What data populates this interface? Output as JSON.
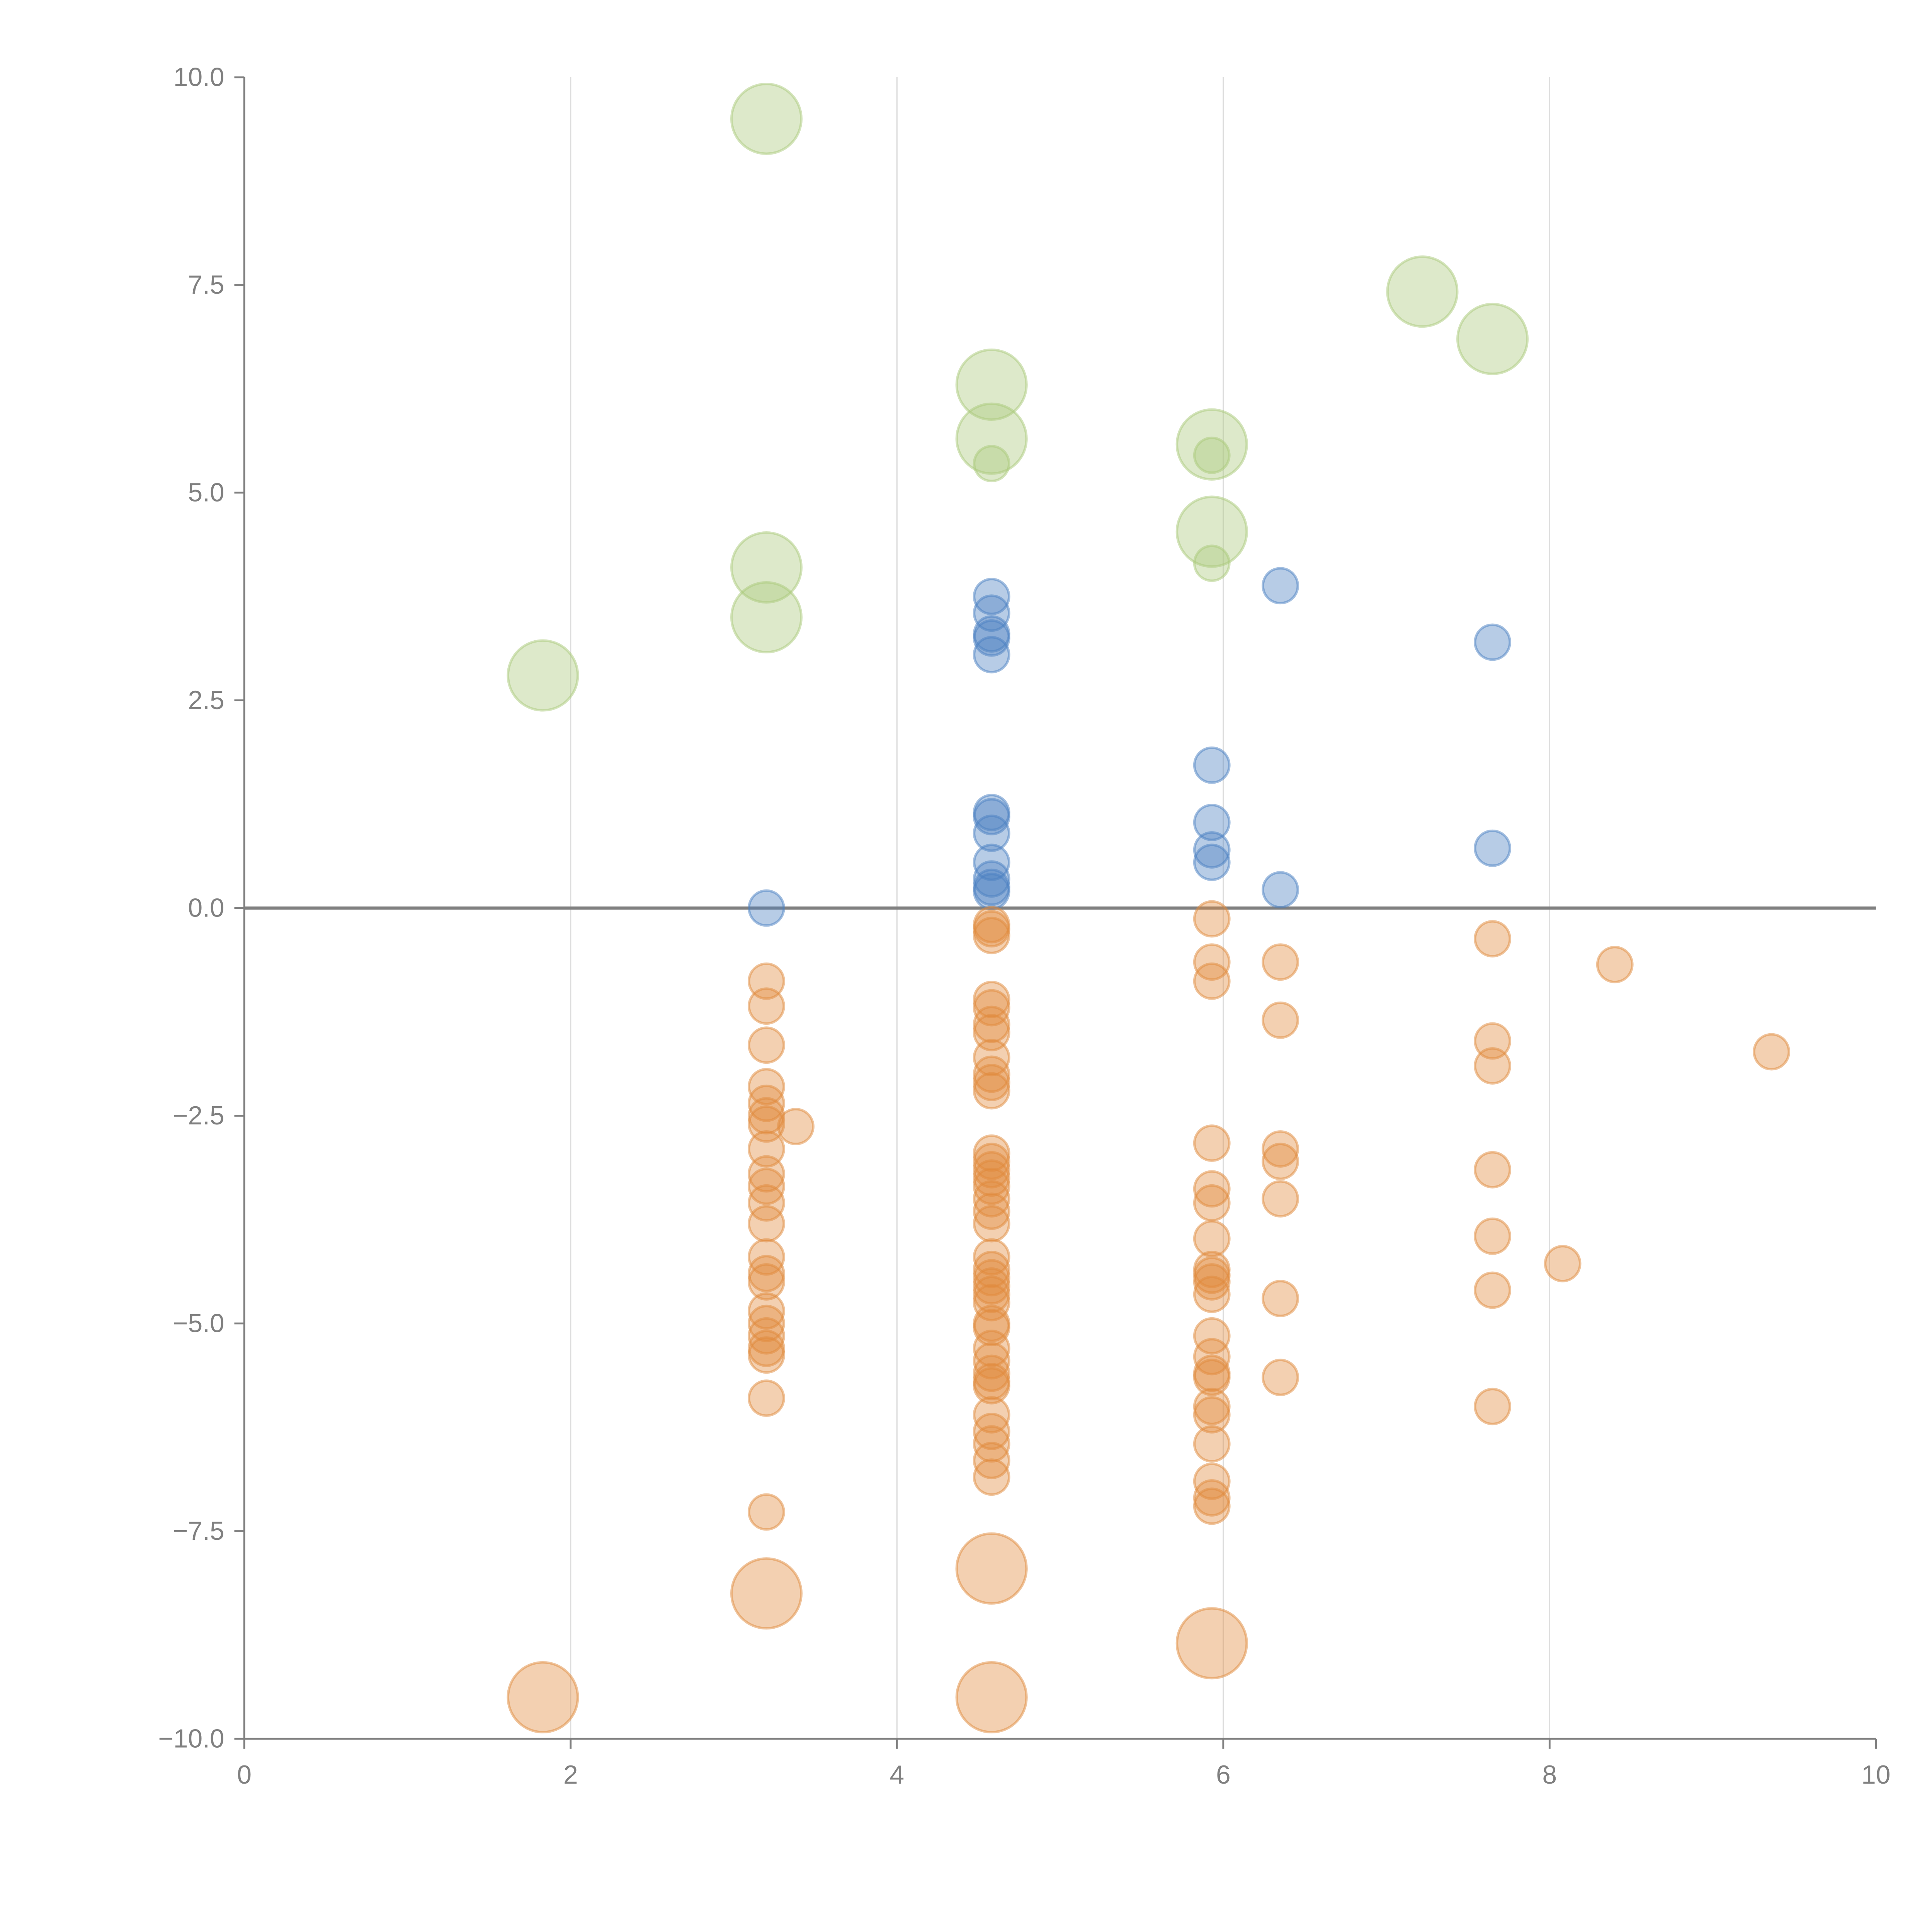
{
  "chart_data": {
    "type": "scatter",
    "subtype": "bubble",
    "title": "",
    "xlabel": "",
    "ylabel": "",
    "xlim": [
      0,
      10
    ],
    "ylim": [
      -10,
      10
    ],
    "x_ticks": [
      "0",
      "2",
      "4",
      "6",
      "8",
      "10"
    ],
    "x_tick_values": [
      0,
      2,
      4,
      6,
      8,
      10
    ],
    "y_ticks": [
      "10.0",
      "7.5",
      "5.0",
      "2.5",
      "0.0",
      "−2.5",
      "−5.0",
      "−7.5",
      "−10.0"
    ],
    "y_tick_values": [
      10,
      7.5,
      5,
      2.5,
      0,
      -2.5,
      -5,
      -7.5,
      -10
    ],
    "grid": "vertical",
    "zero_line": true,
    "legend": "none",
    "series": [
      {
        "name": "green",
        "color": "#a9c97a",
        "points": [
          {
            "x": 1.83,
            "y": 2.8,
            "size": 4
          },
          {
            "x": 3.2,
            "y": 9.5,
            "size": 4
          },
          {
            "x": 3.2,
            "y": 4.1,
            "size": 4
          },
          {
            "x": 3.2,
            "y": 3.5,
            "size": 4
          },
          {
            "x": 4.58,
            "y": 6.3,
            "size": 4
          },
          {
            "x": 4.58,
            "y": 5.65,
            "size": 4
          },
          {
            "x": 4.58,
            "y": 5.35,
            "size": 1
          },
          {
            "x": 5.93,
            "y": 5.58,
            "size": 4
          },
          {
            "x": 5.93,
            "y": 5.45,
            "size": 1
          },
          {
            "x": 5.93,
            "y": 4.53,
            "size": 4
          },
          {
            "x": 5.93,
            "y": 4.15,
            "size": 1
          },
          {
            "x": 7.22,
            "y": 7.42,
            "size": 4
          },
          {
            "x": 7.65,
            "y": 6.85,
            "size": 4
          }
        ]
      },
      {
        "name": "blue",
        "color": "#4a7fc1",
        "points": [
          {
            "x": 3.2,
            "y": 0.0,
            "size": 1
          },
          {
            "x": 4.58,
            "y": 3.75,
            "size": 1
          },
          {
            "x": 4.58,
            "y": 3.55,
            "size": 1
          },
          {
            "x": 4.58,
            "y": 3.3,
            "size": 1
          },
          {
            "x": 4.58,
            "y": 3.25,
            "size": 1
          },
          {
            "x": 4.58,
            "y": 3.05,
            "size": 1
          },
          {
            "x": 4.58,
            "y": 1.15,
            "size": 1
          },
          {
            "x": 4.58,
            "y": 1.1,
            "size": 1
          },
          {
            "x": 4.58,
            "y": 0.9,
            "size": 1
          },
          {
            "x": 4.58,
            "y": 0.55,
            "size": 1
          },
          {
            "x": 4.58,
            "y": 0.35,
            "size": 1
          },
          {
            "x": 4.58,
            "y": 0.25,
            "size": 1
          },
          {
            "x": 4.58,
            "y": 0.2,
            "size": 1
          },
          {
            "x": 5.93,
            "y": 1.72,
            "size": 1
          },
          {
            "x": 5.93,
            "y": 1.03,
            "size": 1
          },
          {
            "x": 5.93,
            "y": 0.7,
            "size": 1
          },
          {
            "x": 5.93,
            "y": 0.55,
            "size": 1
          },
          {
            "x": 6.35,
            "y": 3.88,
            "size": 1
          },
          {
            "x": 6.35,
            "y": 0.22,
            "size": 1
          },
          {
            "x": 7.65,
            "y": 3.2,
            "size": 1
          },
          {
            "x": 7.65,
            "y": 0.72,
            "size": 1
          }
        ]
      },
      {
        "name": "orange",
        "color": "#e08a3c",
        "points": [
          {
            "x": 1.83,
            "y": -9.5,
            "size": 4
          },
          {
            "x": 3.2,
            "y": -8.25,
            "size": 4
          },
          {
            "x": 4.58,
            "y": -7.95,
            "size": 4
          },
          {
            "x": 4.58,
            "y": -9.5,
            "size": 4
          },
          {
            "x": 5.93,
            "y": -8.85,
            "size": 4
          },
          {
            "x": 3.2,
            "y": -0.88,
            "size": 1
          },
          {
            "x": 3.2,
            "y": -1.18,
            "size": 1
          },
          {
            "x": 3.2,
            "y": -1.65,
            "size": 1
          },
          {
            "x": 3.2,
            "y": -2.15,
            "size": 1
          },
          {
            "x": 3.2,
            "y": -2.35,
            "size": 1
          },
          {
            "x": 3.2,
            "y": -2.5,
            "size": 1
          },
          {
            "x": 3.2,
            "y": -2.6,
            "size": 1
          },
          {
            "x": 3.38,
            "y": -2.63,
            "size": 1
          },
          {
            "x": 3.2,
            "y": -2.9,
            "size": 1
          },
          {
            "x": 3.2,
            "y": -3.2,
            "size": 1
          },
          {
            "x": 3.2,
            "y": -3.35,
            "size": 1
          },
          {
            "x": 3.2,
            "y": -3.55,
            "size": 1
          },
          {
            "x": 3.2,
            "y": -3.8,
            "size": 1
          },
          {
            "x": 3.2,
            "y": -4.2,
            "size": 1
          },
          {
            "x": 3.2,
            "y": -4.4,
            "size": 1
          },
          {
            "x": 3.2,
            "y": -4.5,
            "size": 1
          },
          {
            "x": 3.2,
            "y": -4.85,
            "size": 1
          },
          {
            "x": 3.2,
            "y": -5.0,
            "size": 1
          },
          {
            "x": 3.2,
            "y": -5.15,
            "size": 1
          },
          {
            "x": 3.2,
            "y": -5.3,
            "size": 1
          },
          {
            "x": 3.2,
            "y": -5.38,
            "size": 1
          },
          {
            "x": 3.2,
            "y": -5.9,
            "size": 1
          },
          {
            "x": 3.2,
            "y": -7.27,
            "size": 1
          },
          {
            "x": 4.58,
            "y": -0.2,
            "size": 1
          },
          {
            "x": 4.58,
            "y": -0.25,
            "size": 1
          },
          {
            "x": 4.58,
            "y": -0.33,
            "size": 1
          },
          {
            "x": 4.58,
            "y": -1.1,
            "size": 1
          },
          {
            "x": 4.58,
            "y": -1.2,
            "size": 1
          },
          {
            "x": 4.58,
            "y": -1.4,
            "size": 1
          },
          {
            "x": 4.58,
            "y": -1.5,
            "size": 1
          },
          {
            "x": 4.58,
            "y": -1.8,
            "size": 1
          },
          {
            "x": 4.58,
            "y": -2.0,
            "size": 1
          },
          {
            "x": 4.58,
            "y": -2.1,
            "size": 1
          },
          {
            "x": 4.58,
            "y": -2.2,
            "size": 1
          },
          {
            "x": 4.58,
            "y": -2.95,
            "size": 1
          },
          {
            "x": 4.58,
            "y": -3.05,
            "size": 1
          },
          {
            "x": 4.58,
            "y": -3.15,
            "size": 1
          },
          {
            "x": 4.58,
            "y": -3.25,
            "size": 1
          },
          {
            "x": 4.58,
            "y": -3.35,
            "size": 1
          },
          {
            "x": 4.58,
            "y": -3.5,
            "size": 1
          },
          {
            "x": 4.58,
            "y": -3.65,
            "size": 1
          },
          {
            "x": 4.58,
            "y": -3.8,
            "size": 1
          },
          {
            "x": 4.58,
            "y": -4.2,
            "size": 1
          },
          {
            "x": 4.58,
            "y": -4.35,
            "size": 1
          },
          {
            "x": 4.58,
            "y": -4.45,
            "size": 1
          },
          {
            "x": 4.58,
            "y": -4.55,
            "size": 1
          },
          {
            "x": 4.58,
            "y": -4.65,
            "size": 1
          },
          {
            "x": 4.58,
            "y": -4.75,
            "size": 1
          },
          {
            "x": 4.58,
            "y": -5.0,
            "size": 1
          },
          {
            "x": 4.58,
            "y": -5.05,
            "size": 1
          },
          {
            "x": 4.58,
            "y": -5.3,
            "size": 1
          },
          {
            "x": 4.58,
            "y": -5.45,
            "size": 1
          },
          {
            "x": 4.58,
            "y": -5.6,
            "size": 1
          },
          {
            "x": 4.58,
            "y": -5.7,
            "size": 1
          },
          {
            "x": 4.58,
            "y": -5.75,
            "size": 1
          },
          {
            "x": 4.58,
            "y": -6.1,
            "size": 1
          },
          {
            "x": 4.58,
            "y": -6.3,
            "size": 1
          },
          {
            "x": 4.58,
            "y": -6.45,
            "size": 1
          },
          {
            "x": 4.58,
            "y": -6.65,
            "size": 1
          },
          {
            "x": 4.58,
            "y": -6.85,
            "size": 1
          },
          {
            "x": 5.93,
            "y": -0.13,
            "size": 1
          },
          {
            "x": 5.93,
            "y": -0.65,
            "size": 1
          },
          {
            "x": 5.93,
            "y": -0.88,
            "size": 1
          },
          {
            "x": 5.93,
            "y": -2.83,
            "size": 1
          },
          {
            "x": 5.93,
            "y": -3.38,
            "size": 1
          },
          {
            "x": 5.93,
            "y": -3.55,
            "size": 1
          },
          {
            "x": 5.93,
            "y": -3.98,
            "size": 1
          },
          {
            "x": 5.93,
            "y": -4.35,
            "size": 1
          },
          {
            "x": 5.93,
            "y": -4.42,
            "size": 1
          },
          {
            "x": 5.93,
            "y": -4.5,
            "size": 1
          },
          {
            "x": 5.93,
            "y": -4.65,
            "size": 1
          },
          {
            "x": 5.93,
            "y": -5.15,
            "size": 1
          },
          {
            "x": 5.93,
            "y": -5.4,
            "size": 1
          },
          {
            "x": 5.93,
            "y": -5.6,
            "size": 1
          },
          {
            "x": 5.93,
            "y": -5.65,
            "size": 1
          },
          {
            "x": 5.93,
            "y": -6.0,
            "size": 1
          },
          {
            "x": 5.93,
            "y": -6.1,
            "size": 1
          },
          {
            "x": 5.93,
            "y": -6.45,
            "size": 1
          },
          {
            "x": 5.93,
            "y": -6.9,
            "size": 1
          },
          {
            "x": 5.93,
            "y": -7.1,
            "size": 1
          },
          {
            "x": 5.93,
            "y": -7.2,
            "size": 1
          },
          {
            "x": 6.35,
            "y": -0.65,
            "size": 1
          },
          {
            "x": 6.35,
            "y": -1.35,
            "size": 1
          },
          {
            "x": 6.35,
            "y": -2.9,
            "size": 1
          },
          {
            "x": 6.35,
            "y": -3.05,
            "size": 1
          },
          {
            "x": 6.35,
            "y": -3.5,
            "size": 1
          },
          {
            "x": 6.35,
            "y": -4.7,
            "size": 1
          },
          {
            "x": 6.35,
            "y": -5.65,
            "size": 1
          },
          {
            "x": 7.65,
            "y": -0.37,
            "size": 1
          },
          {
            "x": 7.65,
            "y": -1.6,
            "size": 1
          },
          {
            "x": 7.65,
            "y": -1.9,
            "size": 1
          },
          {
            "x": 7.65,
            "y": -3.15,
            "size": 1
          },
          {
            "x": 7.65,
            "y": -3.95,
            "size": 1
          },
          {
            "x": 7.65,
            "y": -4.6,
            "size": 1
          },
          {
            "x": 7.65,
            "y": -6.0,
            "size": 1
          },
          {
            "x": 8.08,
            "y": -4.28,
            "size": 1
          },
          {
            "x": 8.4,
            "y": -0.68,
            "size": 1
          },
          {
            "x": 9.36,
            "y": -1.73,
            "size": 1
          }
        ]
      }
    ]
  }
}
